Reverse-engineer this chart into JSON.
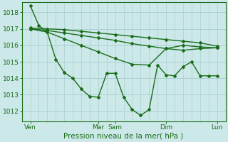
{
  "background_color": "#cce8e8",
  "grid_color": "#aad0d0",
  "line_color": "#1a6e1a",
  "spine_color": "#1a6e1a",
  "title": "Pression niveau de la mer( hPa )",
  "ylim": [
    1011.4,
    1018.6
  ],
  "yticks": [
    1012,
    1013,
    1014,
    1015,
    1016,
    1017,
    1018
  ],
  "xlim": [
    0,
    24
  ],
  "xtick_pos": [
    1,
    9,
    11,
    17,
    23
  ],
  "xtick_labels": [
    "Ven",
    "Mar",
    "Sam",
    "Dim",
    "Lun"
  ],
  "lines": [
    {
      "x": [
        1,
        2,
        3,
        4,
        5,
        6,
        7,
        8,
        9,
        10,
        11,
        12,
        13,
        14,
        15,
        16,
        17,
        18,
        19,
        20,
        21,
        22,
        23
      ],
      "y": [
        1018.4,
        1017.2,
        1016.8,
        1015.15,
        1014.35,
        1014.0,
        1013.35,
        1012.9,
        1012.85,
        1014.3,
        1014.3,
        1012.85,
        1012.1,
        1011.75,
        1012.1,
        1014.8,
        1014.2,
        1014.15,
        1014.7,
        1015.0,
        1014.15,
        1014.15,
        1014.15
      ],
      "marker": "D",
      "ms": 2.0,
      "lw": 1.0
    },
    {
      "x": [
        1,
        3,
        5,
        7,
        9,
        11,
        13,
        15,
        17,
        19,
        21,
        23
      ],
      "y": [
        1017.05,
        1017.0,
        1016.95,
        1016.85,
        1016.75,
        1016.65,
        1016.55,
        1016.45,
        1016.35,
        1016.25,
        1016.15,
        1015.95
      ],
      "marker": "D",
      "ms": 2.0,
      "lw": 1.0
    },
    {
      "x": [
        1,
        3,
        5,
        7,
        9,
        11,
        13,
        15,
        17,
        19,
        21,
        23
      ],
      "y": [
        1017.0,
        1016.9,
        1016.75,
        1016.6,
        1016.45,
        1016.3,
        1016.1,
        1015.95,
        1015.8,
        1015.7,
        1015.8,
        1015.85
      ],
      "marker": "D",
      "ms": 2.0,
      "lw": 1.0
    },
    {
      "x": [
        1,
        3,
        5,
        7,
        9,
        11,
        13,
        15,
        17,
        19,
        21,
        23
      ],
      "y": [
        1017.0,
        1016.8,
        1016.4,
        1016.0,
        1015.6,
        1015.2,
        1014.85,
        1014.8,
        1015.8,
        1016.0,
        1015.9,
        1015.85
      ],
      "marker": "D",
      "ms": 2.0,
      "lw": 1.0
    }
  ],
  "tick_fontsize": 6.5,
  "xlabel_fontsize": 7.5
}
